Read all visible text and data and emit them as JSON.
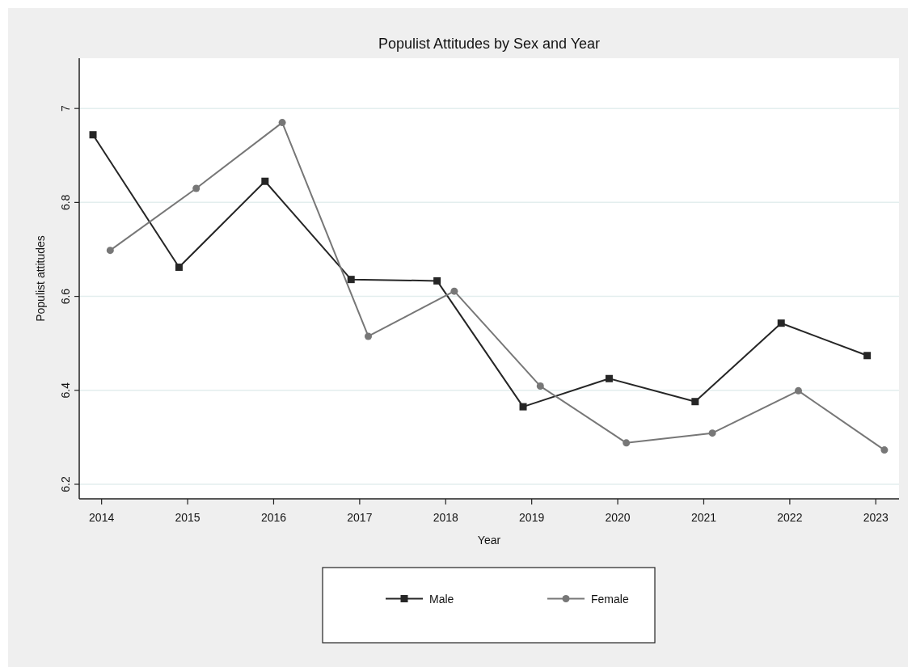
{
  "chart_data": {
    "type": "line",
    "title": "Populist Attitudes by Sex and Year",
    "xlabel": "Year",
    "ylabel": "Populist attitudes",
    "xlim": [
      2013.74,
      2023.27
    ],
    "xticks": [
      2014,
      2015,
      2016,
      2017,
      2018,
      2019,
      2020,
      2021,
      2022,
      2023
    ],
    "ylim": [
      6.169,
      7.107
    ],
    "yticks": [
      6.2,
      6.4,
      6.6,
      6.8,
      7
    ],
    "grid": "y",
    "legend": "bottom",
    "series": [
      {
        "name": "Male",
        "color": "#262626",
        "marker": "square",
        "x": [
          2013.9,
          2014.9,
          2015.9,
          2016.9,
          2017.9,
          2018.9,
          2019.9,
          2020.9,
          2021.9,
          2022.9
        ],
        "values": [
          6.944,
          6.662,
          6.845,
          6.636,
          6.633,
          6.365,
          6.425,
          6.376,
          6.543,
          6.474
        ]
      },
      {
        "name": "Female",
        "color": "#777777",
        "marker": "circle",
        "x": [
          2014.1,
          2015.1,
          2016.1,
          2017.1,
          2018.1,
          2019.1,
          2020.1,
          2021.1,
          2022.1,
          2023.1
        ],
        "values": [
          6.698,
          6.83,
          6.97,
          6.515,
          6.611,
          6.409,
          6.288,
          6.309,
          6.399,
          6.273
        ]
      }
    ]
  }
}
